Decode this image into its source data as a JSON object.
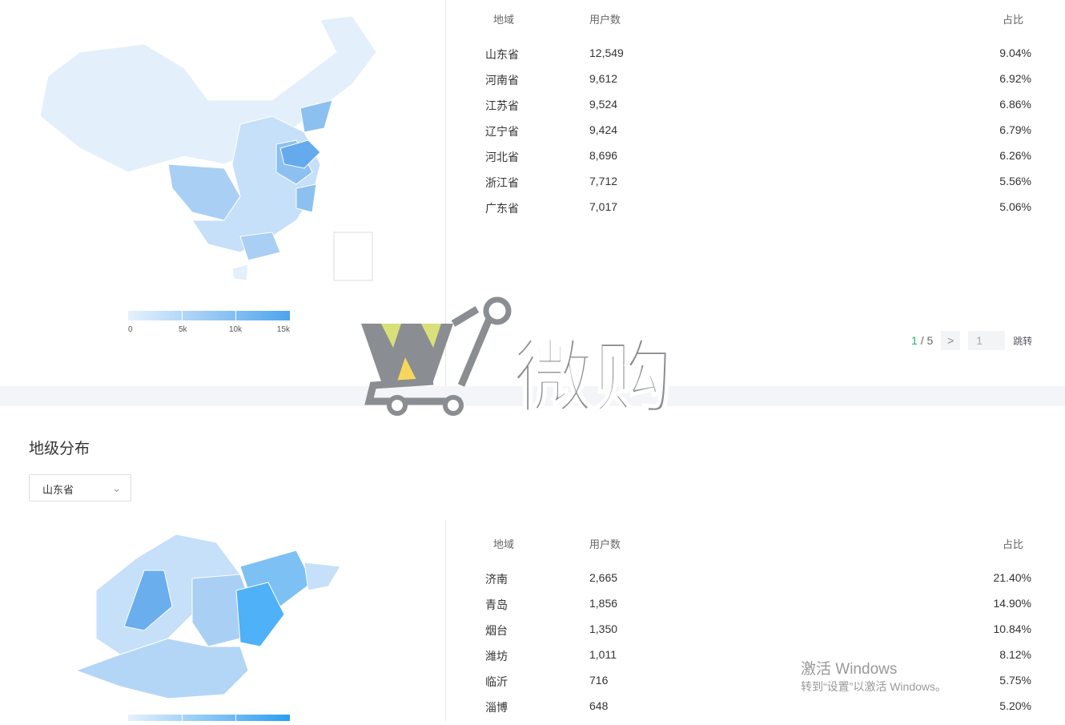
{
  "province": {
    "legend": {
      "ticks": [
        "0",
        "5k",
        "10k",
        "15k"
      ],
      "colors": [
        "#e6f1fc",
        "#4ea4ee"
      ]
    },
    "table": {
      "headers": {
        "region": "地域",
        "users": "用户数",
        "ratio": "占比"
      },
      "rows": [
        {
          "region": "山东省",
          "users": "12,549",
          "ratio": "9.04%"
        },
        {
          "region": "河南省",
          "users": "9,612",
          "ratio": "6.92%"
        },
        {
          "region": "江苏省",
          "users": "9,524",
          "ratio": "6.86%"
        },
        {
          "region": "辽宁省",
          "users": "9,424",
          "ratio": "6.79%"
        },
        {
          "region": "河北省",
          "users": "8,696",
          "ratio": "6.26%"
        },
        {
          "region": "浙江省",
          "users": "7,712",
          "ratio": "5.56%"
        },
        {
          "region": "广东省",
          "users": "7,017",
          "ratio": "5.06%"
        }
      ]
    },
    "pager": {
      "current": "1",
      "sep": "/",
      "total": "5",
      "next": ">",
      "input": "1",
      "jump": "跳转",
      "accent": "#21b36b"
    }
  },
  "city": {
    "title": "地级分布",
    "select": {
      "value": "山东省"
    },
    "table": {
      "headers": {
        "region": "地域",
        "users": "用户数",
        "ratio": "占比"
      },
      "rows": [
        {
          "region": "济南",
          "users": "2,665",
          "ratio": "21.40%"
        },
        {
          "region": "青岛",
          "users": "1,856",
          "ratio": "14.90%"
        },
        {
          "region": "烟台",
          "users": "1,350",
          "ratio": "10.84%"
        },
        {
          "region": "潍坊",
          "users": "1,011",
          "ratio": "8.12%"
        },
        {
          "region": "临沂",
          "users": "716",
          "ratio": "5.75%"
        },
        {
          "region": "淄博",
          "users": "648",
          "ratio": "5.20%"
        }
      ]
    }
  },
  "watermark": {
    "logo_text": "微购"
  },
  "windows": {
    "line1": "激活 Windows",
    "line2": "转到“设置”以激活 Windows。"
  }
}
